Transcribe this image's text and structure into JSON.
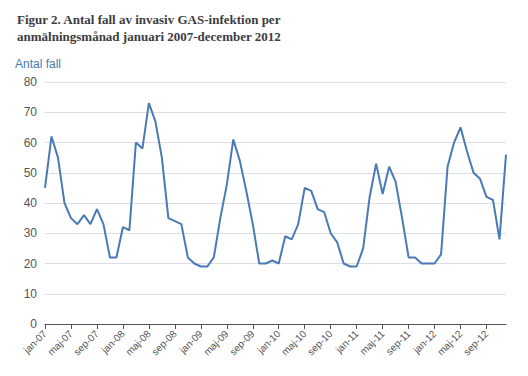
{
  "chart_data": {
    "type": "line",
    "title": "Figur 2. Antal fall av invasiv GAS-infektion per\nanmälningsmånad januari 2007-december 2012",
    "y_label": "Antal fall",
    "categories": [
      "jan-07",
      null,
      null,
      null,
      "maj-07",
      null,
      null,
      null,
      "sep-07",
      null,
      null,
      null,
      "jan-08",
      null,
      null,
      null,
      "maj-08",
      null,
      null,
      null,
      "sep-08",
      null,
      null,
      null,
      "jan-09",
      null,
      null,
      null,
      "maj-09",
      null,
      null,
      null,
      "sep-09",
      null,
      null,
      null,
      "jan-10",
      null,
      null,
      null,
      "maj-10",
      null,
      null,
      null,
      "sep-10",
      null,
      null,
      null,
      "jan-11",
      null,
      null,
      null,
      "maj-11",
      null,
      null,
      null,
      "sep-11",
      null,
      null,
      null,
      "jan-12",
      null,
      null,
      null,
      "maj-12",
      null,
      null,
      null,
      "sep-12",
      null,
      null,
      null
    ],
    "values": [
      45,
      62,
      55,
      40,
      35,
      33,
      36,
      33,
      38,
      33,
      22,
      22,
      32,
      31,
      60,
      58,
      73,
      67,
      55,
      35,
      34,
      33,
      22,
      20,
      19,
      19,
      22,
      35,
      46,
      61,
      54,
      44,
      33,
      20,
      20,
      21,
      20,
      29,
      28,
      33,
      45,
      44,
      38,
      37,
      30,
      27,
      20,
      19,
      19,
      25,
      42,
      53,
      43,
      52,
      47,
      35,
      22,
      22,
      20,
      20,
      20,
      23,
      52,
      60,
      65,
      57,
      50,
      48,
      42,
      41,
      28,
      56
    ],
    "color": "#4a7ab5",
    "ylim": [
      0,
      80
    ],
    "yticks": [
      0,
      10,
      20,
      30,
      40,
      50,
      60,
      70,
      80
    ],
    "grid": true
  }
}
